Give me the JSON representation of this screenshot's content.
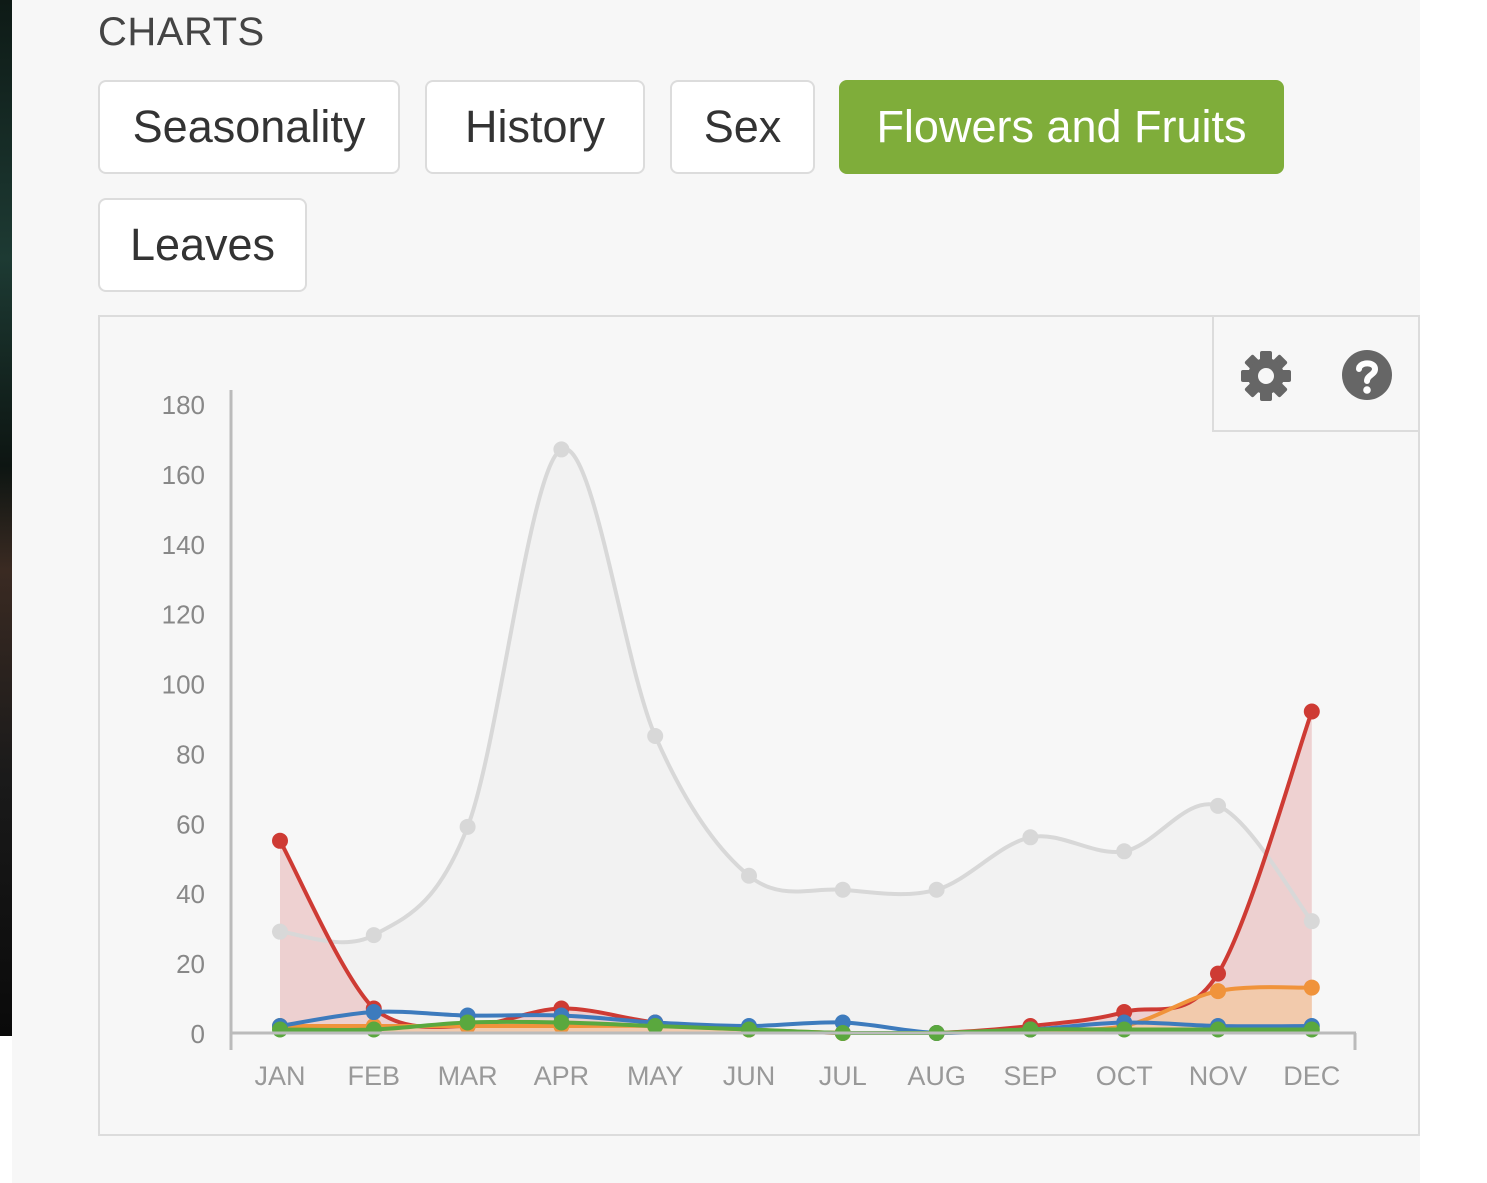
{
  "section_title": "CHARTS",
  "tabs": [
    {
      "label": "Seasonality",
      "active": false
    },
    {
      "label": "History",
      "active": false
    },
    {
      "label": "Sex",
      "active": false
    },
    {
      "label": "Flowers and Fruits",
      "active": true
    },
    {
      "label": "Leaves",
      "active": false
    }
  ],
  "tools": {
    "settings_icon": "gear-icon",
    "help_icon": "question-icon"
  },
  "colors": {
    "accent": "#7fad3a"
  },
  "chart_data": {
    "type": "area",
    "categories": [
      "JAN",
      "FEB",
      "MAR",
      "APR",
      "MAY",
      "JUN",
      "JUL",
      "AUG",
      "SEP",
      "OCT",
      "NOV",
      "DEC"
    ],
    "ylim": [
      0,
      180
    ],
    "yticks": [
      0,
      20,
      40,
      60,
      80,
      100,
      120,
      140,
      160,
      180
    ],
    "grid": false,
    "series": [
      {
        "color": "#d8d8d8",
        "fill": "#f2f2f2",
        "values": [
          29,
          28,
          59,
          167,
          85,
          45,
          41,
          41,
          56,
          52,
          65,
          32
        ]
      },
      {
        "color": "#ce3b34",
        "fill": "#ebc4c4",
        "values": [
          55,
          7,
          2,
          7,
          3,
          1,
          0,
          0,
          2,
          6,
          17,
          92
        ]
      },
      {
        "color": "#f0933b",
        "fill": "#f3c8a0",
        "values": [
          2,
          2,
          2,
          2,
          2,
          1,
          0,
          0,
          1,
          2,
          12,
          13
        ]
      },
      {
        "color": "#3d7bbd",
        "fill": "none",
        "values": [
          2,
          6,
          5,
          5,
          3,
          2,
          3,
          0,
          1,
          3,
          2,
          2
        ]
      },
      {
        "color": "#5aa83e",
        "fill": "none",
        "values": [
          1,
          1,
          3,
          3,
          2,
          1,
          0,
          0,
          1,
          1,
          1,
          1
        ]
      }
    ]
  }
}
